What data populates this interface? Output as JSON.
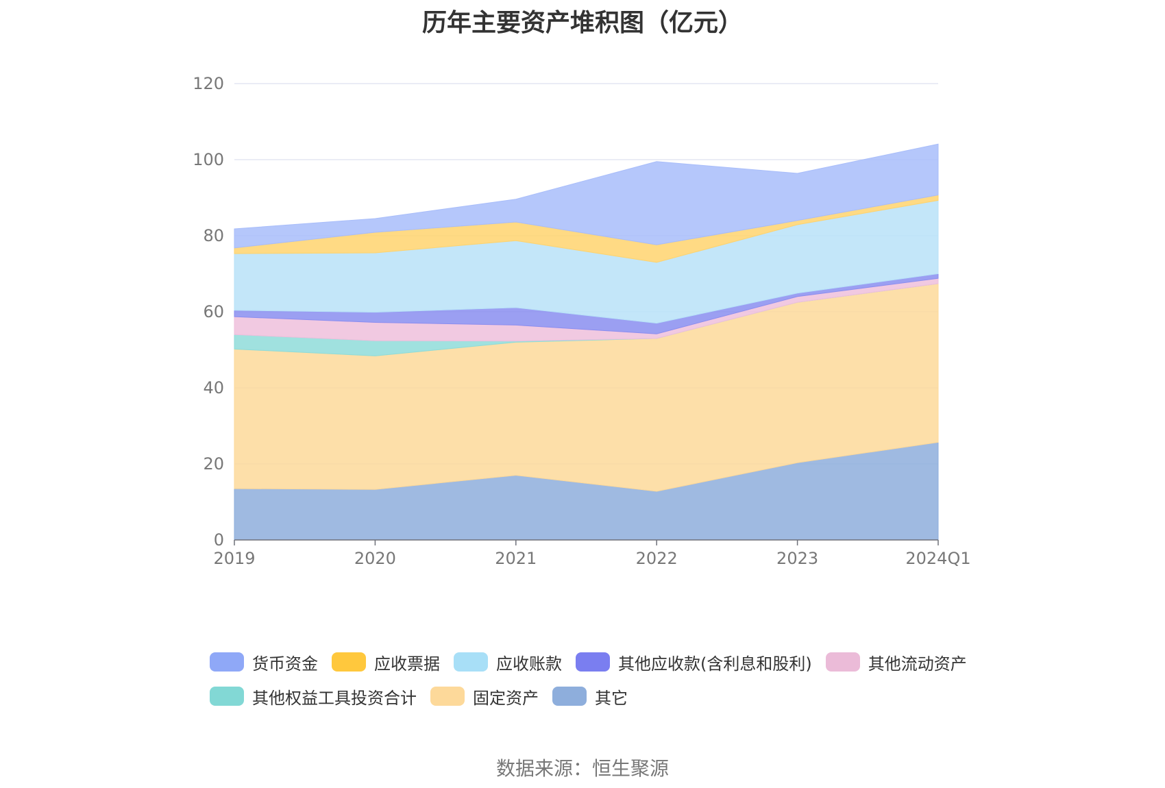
{
  "chart_data": {
    "type": "area",
    "stacked": true,
    "title": "历年主要资产堆积图（亿元）",
    "categories": [
      "2019",
      "2020",
      "2021",
      "2022",
      "2023",
      "2024Q1"
    ],
    "ylim": [
      0,
      120
    ],
    "yticks": [
      0,
      20,
      40,
      60,
      80,
      100,
      120
    ],
    "grid": true,
    "legend_position": "bottom",
    "series": [
      {
        "name": "其它",
        "color": "#8eaedc",
        "values": [
          13.5,
          13.3,
          17.0,
          12.8,
          20.3,
          25.7
        ]
      },
      {
        "name": "固定资产",
        "color": "#fdd99a",
        "values": [
          36.7,
          35.1,
          35.0,
          40.2,
          42.2,
          41.7
        ]
      },
      {
        "name": "其他权益工具投资合计",
        "color": "#8fdcd9",
        "values": [
          3.8,
          4.0,
          0.3,
          0.0,
          0.0,
          0.0
        ]
      },
      {
        "name": "其他流动资产",
        "color": "#eebfdc",
        "values": [
          4.7,
          4.8,
          4.2,
          1.2,
          1.5,
          1.4
        ]
      },
      {
        "name": "其他应收款(含利息和股利)",
        "color": "#8a8ef0",
        "values": [
          1.7,
          2.7,
          4.6,
          2.8,
          0.9,
          1.2
        ]
      },
      {
        "name": "应收账款",
        "color": "#b8e2f8",
        "values": [
          14.9,
          15.6,
          17.6,
          16.0,
          18.0,
          19.3
        ]
      },
      {
        "name": "应收票据",
        "color": "#ffd36e",
        "values": [
          1.5,
          5.4,
          4.9,
          4.6,
          1.1,
          1.4
        ]
      },
      {
        "name": "货币资金",
        "color": "#a8bdfa",
        "values": [
          5.0,
          3.6,
          6.0,
          21.9,
          12.4,
          13.4
        ]
      }
    ],
    "legend_order": [
      "货币资金",
      "应收票据",
      "应收账款",
      "其他应收款(含利息和股利)",
      "其他流动资产",
      "其他权益工具投资合计",
      "固定资产",
      "其它"
    ],
    "legend_colors": {
      "货币资金": "#8fa8f7",
      "应收票据": "#ffc83d",
      "应收账款": "#a8dff7",
      "其他应收款(含利息和股利)": "#7a7ef0",
      "其他流动资产": "#ebbbd8",
      "其他权益工具投资合计": "#82d8d5",
      "固定资产": "#fdd99a",
      "其它": "#8eaedc"
    }
  },
  "source_text": "数据来源：恒生聚源"
}
